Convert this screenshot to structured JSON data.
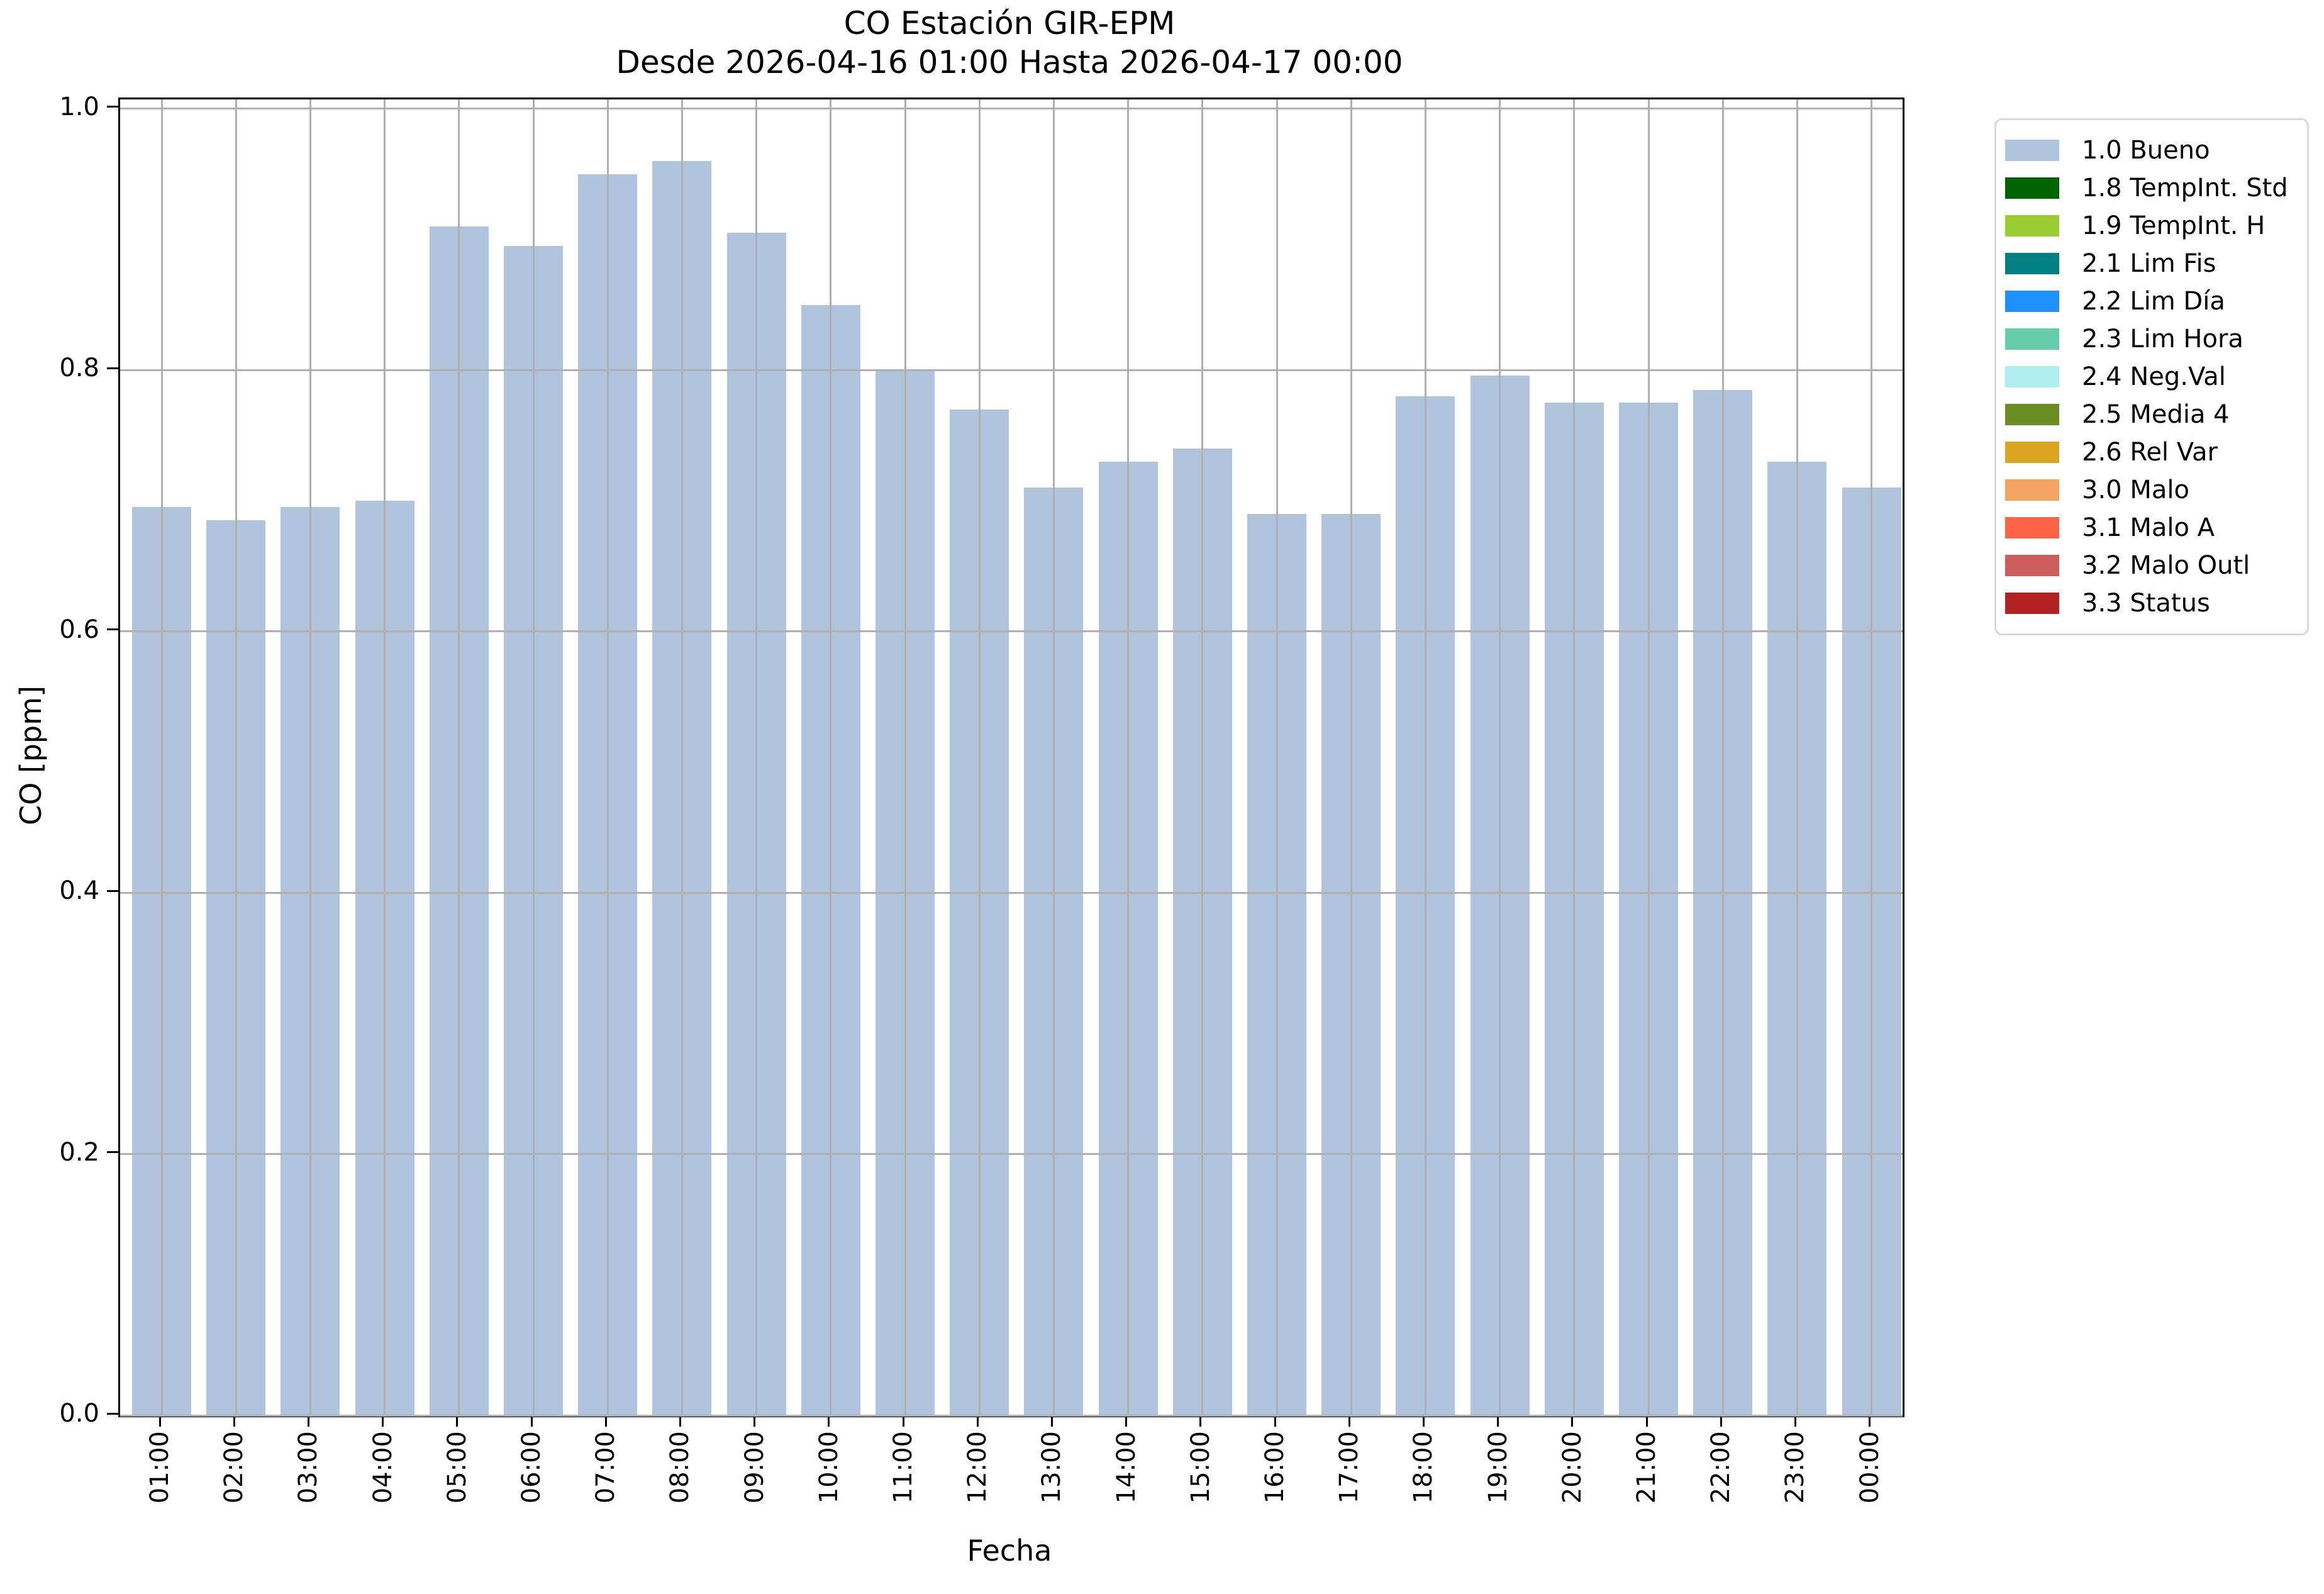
{
  "header": {
    "title": "CO Estación GIR-EPM",
    "subtitle": "Desde 2026-04-16 01:00 Hasta 2026-04-17 00:00"
  },
  "chart_data": {
    "type": "bar",
    "title": "CO Estación GIR-EPM",
    "subtitle": "Desde 2026-04-16 01:00 Hasta 2026-04-17 00:00",
    "xlabel": "Fecha",
    "ylabel": "CO [ppm]",
    "ylim": [
      0.0,
      1.0
    ],
    "yticks": [
      0.0,
      0.2,
      0.4,
      0.6,
      0.8,
      1.0
    ],
    "grid": true,
    "bar_color": "#b0c4de",
    "grid_color": "#b0b0b0",
    "categories": [
      "01:00",
      "02:00",
      "03:00",
      "04:00",
      "05:00",
      "06:00",
      "07:00",
      "08:00",
      "09:00",
      "10:00",
      "11:00",
      "12:00",
      "13:00",
      "14:00",
      "15:00",
      "16:00",
      "17:00",
      "18:00",
      "19:00",
      "20:00",
      "21:00",
      "22:00",
      "23:00",
      "00:00"
    ],
    "values": [
      0.695,
      0.685,
      0.695,
      0.7,
      0.91,
      0.895,
      0.95,
      0.96,
      0.905,
      0.85,
      0.8,
      0.77,
      0.71,
      0.73,
      0.74,
      0.69,
      0.69,
      0.78,
      0.796,
      0.775,
      0.775,
      0.785,
      0.73,
      0.71
    ],
    "legend": {
      "position": "outside-top-right",
      "items": [
        {
          "label": "1.0 Bueno",
          "color": "#b0c4de"
        },
        {
          "label": "1.8 TempInt. Std",
          "color": "#006400"
        },
        {
          "label": "1.9 TempInt. H",
          "color": "#9acd32"
        },
        {
          "label": "2.1 Lim Fis",
          "color": "#008080"
        },
        {
          "label": "2.2 Lim Día",
          "color": "#1e90ff"
        },
        {
          "label": "2.3 Lim Hora",
          "color": "#66cdaa"
        },
        {
          "label": "2.4 Neg.Val",
          "color": "#afeeee"
        },
        {
          "label": "2.5 Media 4",
          "color": "#6b8e23"
        },
        {
          "label": "2.6 Rel Var",
          "color": "#daa520"
        },
        {
          "label": "3.0 Malo",
          "color": "#f4a460"
        },
        {
          "label": "3.1 Malo A",
          "color": "#ff6347"
        },
        {
          "label": "3.2 Malo Outl",
          "color": "#cd5c5c"
        },
        {
          "label": "3.3 Status",
          "color": "#b22222"
        }
      ]
    }
  }
}
